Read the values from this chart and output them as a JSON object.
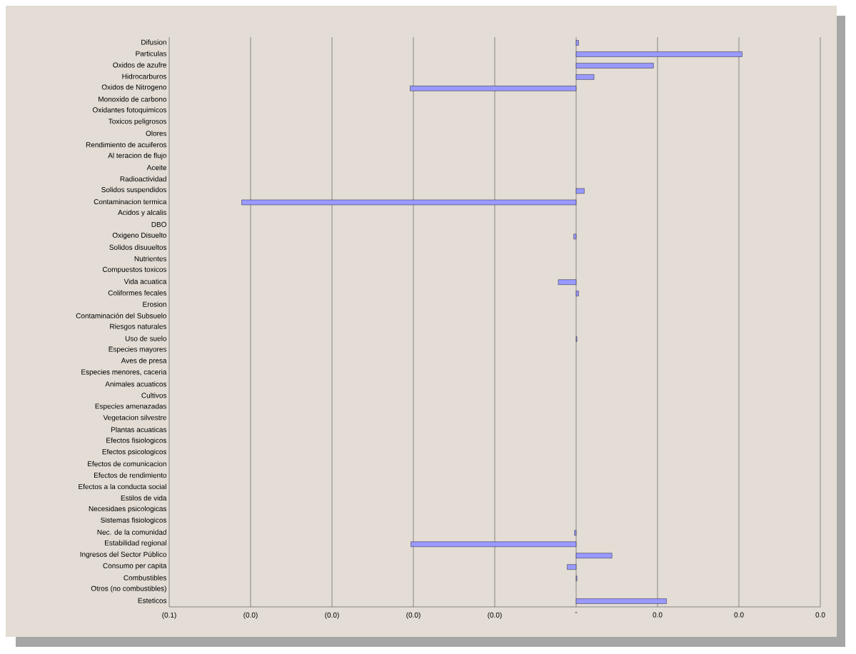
{
  "chart_data": {
    "type": "bar",
    "orientation": "horizontal",
    "categories": [
      "Difusion",
      "Particulas",
      "Oxidos de azufre",
      "Hidrocarburos",
      "Oxidos de Nitrogeno",
      "Monoxido de carbono",
      "Oxidantes fotoquimicos",
      "Toxicos peligrosos",
      "Olores",
      "Rendimiento de acuiferos",
      "Al teracion de flujo",
      "Aceite",
      "Radioactividad",
      "Solidos suspendidos",
      "Contaminacion termica",
      "Acidos y alcalis",
      "DBO",
      "Oxigeno Disuelto",
      "Solidos disuueltos",
      "Nutrientes",
      "Compuestos toxicos",
      "Vida acuatica",
      "Coliformes fecales",
      "Erosion",
      "Contaminación del Subsuelo",
      "Riesgos naturales",
      "Uso de suelo",
      "Especies mayores",
      "Aves de presa",
      "Especies menores, caceria",
      "Animales acuaticos",
      "Cultivos",
      "Especies amenazadas",
      "Vegetacion silvestre",
      "Plantas acuaticas",
      "Efectos fisiologicos",
      "Efectos psicologicos",
      "Efectos de comunicacion",
      "Efectos de rendimiento",
      "Efectos a la conducta social",
      "Estilos de vida",
      "Necesidaes psicologicas",
      "Sistemas fisiologicos",
      "Nec. de la comunidad",
      "Estabilidad regional",
      "Ingresos del Sector Público",
      "Consumo per capita",
      "Combustibles",
      "Otros (no combustibles)",
      "Esteticos"
    ],
    "values": [
      0.0003,
      0.0204,
      0.0095,
      0.0022,
      -0.0204,
      0,
      0,
      0,
      0,
      null,
      null,
      null,
      0,
      0.001,
      -0.0411,
      0,
      0,
      -0.0003,
      null,
      0,
      null,
      -0.0022,
      0.0003,
      0,
      0,
      0,
      0.0001,
      0,
      0,
      0,
      0,
      0,
      0,
      0,
      0,
      0,
      0,
      0,
      0,
      0,
      0,
      0,
      null,
      -0.0002,
      -0.0203,
      0.0044,
      -0.0011,
      0.0001,
      0,
      0.0111
    ],
    "color": "#9999ff",
    "xlim": [
      -0.05,
      0.03
    ],
    "xticks": [
      {
        "value": -0.05,
        "label": "(0.1)"
      },
      {
        "value": -0.04,
        "label": "(0.0)"
      },
      {
        "value": -0.03,
        "label": "(0.0)"
      },
      {
        "value": -0.02,
        "label": "(0.0)"
      },
      {
        "value": -0.01,
        "label": "(0.0)"
      },
      {
        "value": 0,
        "label": "-"
      },
      {
        "value": 0.01,
        "label": "0.0"
      },
      {
        "value": 0.02,
        "label": "0.0"
      },
      {
        "value": 0.03,
        "label": "0.0"
      }
    ],
    "grid": "x"
  }
}
